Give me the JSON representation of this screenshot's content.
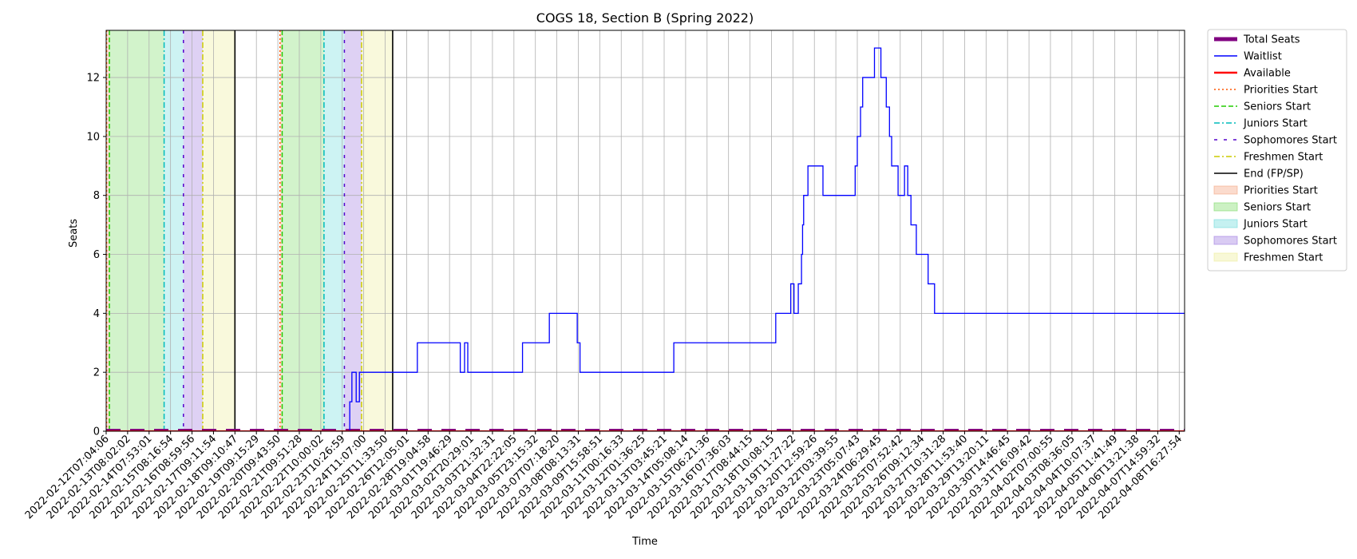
{
  "chart_data": {
    "type": "line",
    "title": "COGS 18, Section B (Spring 2022)",
    "xlabel": "Time",
    "ylabel": "Seats",
    "ylim": [
      0,
      13.6
    ],
    "y_ticks": [
      0,
      2,
      4,
      6,
      8,
      10,
      12
    ],
    "grid": true,
    "legend_placement": "outside-right",
    "x_tick_labels": [
      "2022-02-12T07:04:06",
      "2022-02-13T08:02:02",
      "2022-02-14T07:53:01",
      "2022-02-15T08:16:54",
      "2022-02-16T08:59:56",
      "2022-02-17T09:11:54",
      "2022-02-18T09:10:47",
      "2022-02-19T09:15:29",
      "2022-02-20T09:43:50",
      "2022-02-21T09:51:28",
      "2022-02-22T10:00:02",
      "2022-02-23T10:26:59",
      "2022-02-24T11:07:00",
      "2022-02-25T11:33:50",
      "2022-02-26T12:05:01",
      "2022-02-28T19:04:58",
      "2022-03-01T19:46:29",
      "2022-03-02T20:29:01",
      "2022-03-03T21:32:31",
      "2022-03-04T22:22:05",
      "2022-03-05T23:15:32",
      "2022-03-07T07:18:20",
      "2022-03-08T08:13:31",
      "2022-03-09T15:58:51",
      "2022-03-11T00:16:33",
      "2022-03-12T01:36:25",
      "2022-03-13T03:45:21",
      "2022-03-14T05:08:14",
      "2022-03-15T06:21:36",
      "2022-03-16T07:36:03",
      "2022-03-17T08:44:15",
      "2022-03-18T10:08:15",
      "2022-03-19T11:27:22",
      "2022-03-20T12:59:26",
      "2022-03-22T03:39:55",
      "2022-03-23T05:07:43",
      "2022-03-24T06:29:45",
      "2022-03-25T07:52:42",
      "2022-03-26T09:12:34",
      "2022-03-27T10:31:28",
      "2022-03-28T11:53:40",
      "2022-03-29T13:20:11",
      "2022-03-30T14:46:45",
      "2022-03-31T16:09:42",
      "2022-04-02T07:00:55",
      "2022-04-03T08:36:05",
      "2022-04-04T10:07:37",
      "2022-04-05T11:41:49",
      "2022-04-06T13:21:38",
      "2022-04-07T14:59:32",
      "2022-04-08T16:27:54"
    ],
    "x_index_max": 50.25,
    "series": [
      {
        "name": "Total Seats",
        "color": "#800080",
        "style": "dashed-thick",
        "x": [
          0,
          50.25
        ],
        "y": [
          0,
          0
        ]
      },
      {
        "name": "Waitlist",
        "color": "#0000ff",
        "style": "step",
        "x": [
          0,
          11.35,
          11.35,
          11.45,
          11.45,
          11.65,
          11.65,
          11.8,
          11.8,
          14.5,
          14.5,
          16.5,
          16.5,
          16.7,
          16.7,
          16.85,
          16.85,
          19.4,
          19.4,
          20.65,
          20.65,
          21.95,
          21.95,
          22.0,
          22.0,
          22.08,
          22.08,
          26.45,
          26.45,
          31.2,
          31.2,
          31.9,
          31.9,
          32.05,
          32.05,
          32.25,
          32.25,
          32.4,
          32.4,
          32.45,
          32.45,
          32.5,
          32.5,
          32.7,
          32.7,
          33.4,
          33.4,
          34.9,
          34.9,
          35.0,
          35.0,
          35.15,
          35.15,
          35.25,
          35.25,
          35.8,
          35.8,
          36.1,
          36.1,
          36.35,
          36.35,
          36.5,
          36.5,
          36.6,
          36.6,
          36.9,
          36.9,
          37.2,
          37.2,
          37.35,
          37.35,
          37.5,
          37.5,
          37.75,
          37.75,
          38.3,
          38.3,
          38.6,
          38.6,
          39.0,
          39.0,
          50.25
        ],
        "y": [
          0,
          0,
          1,
          1,
          2,
          2,
          1,
          1,
          2,
          2,
          3,
          3,
          2,
          2,
          3,
          3,
          2,
          2,
          3,
          3,
          4,
          4,
          3,
          3,
          3,
          3,
          2,
          2,
          3,
          3,
          4,
          4,
          5,
          5,
          4,
          4,
          5,
          5,
          6,
          6,
          7,
          7,
          8,
          8,
          9,
          9,
          8,
          8,
          9,
          9,
          10,
          10,
          11,
          11,
          12,
          12,
          13,
          13,
          12,
          12,
          11,
          11,
          10,
          10,
          9,
          9,
          8,
          8,
          9,
          9,
          8,
          8,
          7,
          7,
          6,
          6,
          5,
          5,
          4,
          4,
          4,
          4
        ]
      },
      {
        "name": "Available",
        "color": "#ff0000",
        "style": "solid-thick",
        "x": [
          0,
          50.25
        ],
        "y": [
          0,
          0
        ]
      }
    ],
    "vertical_lines": [
      {
        "name": "Priorities Start",
        "color": "#ff5500",
        "style": "dotted",
        "x": [
          0.02,
          8.1
        ]
      },
      {
        "name": "Seniors Start",
        "color": "#22cc00",
        "style": "dashed",
        "x": [
          0.15,
          8.2
        ]
      },
      {
        "name": "Juniors Start",
        "color": "#00bbbb",
        "style": "dashdot",
        "x": [
          2.7,
          10.15
        ]
      },
      {
        "name": "Sophomores Start",
        "color": "#5500cc",
        "style": "loosedash",
        "x": [
          3.6,
          11.1
        ]
      },
      {
        "name": "Freshmen Start",
        "color": "#cccc00",
        "style": "dashdot",
        "x": [
          4.5,
          11.9
        ]
      },
      {
        "name": "End (FP/SP)",
        "color": "#000000",
        "style": "solid",
        "x": [
          6.0,
          13.35
        ]
      }
    ],
    "shaded_regions": [
      {
        "name": "Priorities Start",
        "color": "#f4a582",
        "ranges": [
          [
            0.02,
            0.15
          ],
          [
            8.1,
            8.2
          ]
        ]
      },
      {
        "name": "Seniors Start",
        "color": "#7fdc6a",
        "ranges": [
          [
            0.15,
            2.7
          ],
          [
            8.2,
            10.15
          ]
        ]
      },
      {
        "name": "Juniors Start",
        "color": "#6fdcdc",
        "ranges": [
          [
            2.7,
            3.6
          ],
          [
            10.15,
            11.1
          ]
        ]
      },
      {
        "name": "Sophomores Start",
        "color": "#a07ce0",
        "ranges": [
          [
            3.6,
            4.5
          ],
          [
            11.1,
            11.9
          ]
        ]
      },
      {
        "name": "Freshmen Start",
        "color": "#eded9a",
        "ranges": [
          [
            4.5,
            6.0
          ],
          [
            11.9,
            13.35
          ]
        ]
      }
    ],
    "legend": [
      {
        "label": "Total Seats",
        "kind": "line",
        "color": "#800080",
        "style": "dashed-thick"
      },
      {
        "label": "Waitlist",
        "kind": "line",
        "color": "#0000ff",
        "style": "solid"
      },
      {
        "label": "Available",
        "kind": "line",
        "color": "#ff0000",
        "style": "solid-thick"
      },
      {
        "label": "Priorities Start",
        "kind": "line",
        "color": "#ff5500",
        "style": "dotted"
      },
      {
        "label": "Seniors Start",
        "kind": "line",
        "color": "#22cc00",
        "style": "dashed"
      },
      {
        "label": "Juniors Start",
        "kind": "line",
        "color": "#00bbbb",
        "style": "dashdot"
      },
      {
        "label": "Sophomores Start",
        "kind": "line",
        "color": "#5500cc",
        "style": "loosedash"
      },
      {
        "label": "Freshmen Start",
        "kind": "line",
        "color": "#cccc00",
        "style": "dashdot"
      },
      {
        "label": "End (FP/SP)",
        "kind": "line",
        "color": "#000000",
        "style": "solid"
      },
      {
        "label": "Priorities Start",
        "kind": "patch",
        "color": "#f4a582"
      },
      {
        "label": "Seniors Start",
        "kind": "patch",
        "color": "#7fdc6a"
      },
      {
        "label": "Juniors Start",
        "kind": "patch",
        "color": "#6fdcdc"
      },
      {
        "label": "Sophomores Start",
        "kind": "patch",
        "color": "#a07ce0"
      },
      {
        "label": "Freshmen Start",
        "kind": "patch",
        "color": "#eded9a"
      }
    ]
  }
}
